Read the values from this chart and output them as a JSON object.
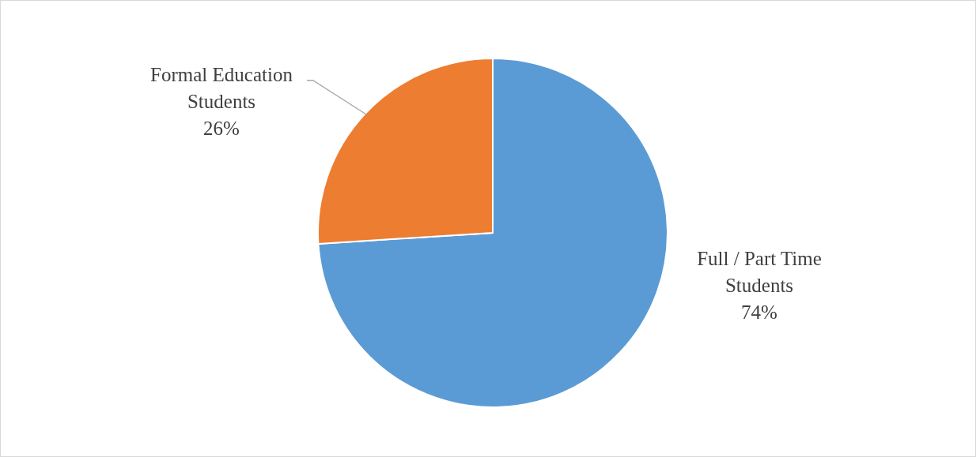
{
  "chart_data": {
    "type": "pie",
    "categories": [
      "Full  / Part Time Students",
      "Formal Education Students"
    ],
    "values": [
      74,
      26
    ],
    "colors": [
      "#5b9bd5",
      "#ed7d31"
    ],
    "value_labels": [
      "74%",
      "26%"
    ],
    "legend": false
  }
}
